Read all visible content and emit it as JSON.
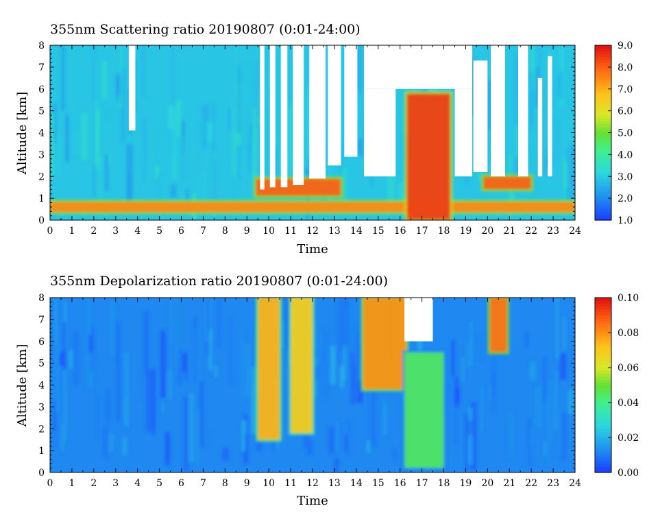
{
  "chart_data": [
    {
      "type": "heatmap",
      "title": "355nm Scattering ratio  20190807 (0:01-24:00)",
      "xlabel": "Time",
      "ylabel": "Altitude [km]",
      "xlim": [
        0,
        24
      ],
      "ylim": [
        0,
        8
      ],
      "x_ticks": [
        "0",
        "1",
        "2",
        "3",
        "4",
        "5",
        "6",
        "7",
        "8",
        "9",
        "10",
        "11",
        "12",
        "13",
        "14",
        "15",
        "16",
        "17",
        "18",
        "19",
        "20",
        "21",
        "22",
        "23",
        "24"
      ],
      "y_ticks": [
        "0",
        "1",
        "2",
        "3",
        "4",
        "5",
        "6",
        "7",
        "8"
      ],
      "colorbar": {
        "range": [
          1.0,
          9.0
        ],
        "ticks": [
          "1.0",
          "2.0",
          "3.0",
          "4.0",
          "5.0",
          "6.0",
          "7.0",
          "8.0",
          "9.0"
        ]
      },
      "background_level": 2.9,
      "gaps": [
        {
          "time": [
            3.6,
            3.9
          ],
          "altitude": [
            4.1,
            8.0
          ]
        },
        {
          "time": [
            9.6,
            9.8
          ],
          "altitude": [
            1.4,
            8.0
          ]
        },
        {
          "time": [
            10.05,
            10.3
          ],
          "altitude": [
            1.5,
            8.0
          ]
        },
        {
          "time": [
            10.55,
            10.85
          ],
          "altitude": [
            1.5,
            8.0
          ]
        },
        {
          "time": [
            11.1,
            11.6
          ],
          "altitude": [
            1.6,
            8.0
          ]
        },
        {
          "time": [
            11.85,
            12.6
          ],
          "altitude": [
            1.9,
            8.0
          ]
        },
        {
          "time": [
            12.7,
            13.3
          ],
          "altitude": [
            2.5,
            8.0
          ]
        },
        {
          "time": [
            13.45,
            14.05
          ],
          "altitude": [
            2.9,
            8.0
          ]
        },
        {
          "time": [
            14.35,
            19.3
          ],
          "altitude": [
            6.0,
            8.0
          ]
        },
        {
          "time": [
            14.35,
            15.8
          ],
          "altitude": [
            2.0,
            6.0
          ]
        },
        {
          "time": [
            18.5,
            19.3
          ],
          "altitude": [
            2.0,
            6.0
          ]
        },
        {
          "time": [
            19.35,
            20.0
          ],
          "altitude": [
            2.2,
            7.3
          ]
        },
        {
          "time": [
            20.15,
            20.8
          ],
          "altitude": [
            2.0,
            8.0
          ]
        },
        {
          "time": [
            21.4,
            21.85
          ],
          "altitude": [
            2.0,
            8.0
          ]
        },
        {
          "time": [
            22.3,
            22.5
          ],
          "altitude": [
            2.0,
            6.5
          ]
        },
        {
          "time": [
            22.75,
            22.95
          ],
          "altitude": [
            2.0,
            7.5
          ]
        }
      ],
      "features": [
        {
          "label": "boundary layer",
          "time": [
            0,
            24
          ],
          "altitude": [
            0.35,
            0.85
          ],
          "value": 7.5
        },
        {
          "label": "cloud 17h",
          "time": [
            16.3,
            18.3
          ],
          "altitude": [
            0.0,
            5.8
          ],
          "value": 8.5
        },
        {
          "label": "cloud 9-12h",
          "time": [
            9.4,
            13.3
          ],
          "altitude": [
            1.1,
            1.9
          ],
          "value": 8.0
        },
        {
          "label": "cloud 20h",
          "time": [
            19.8,
            22.0
          ],
          "altitude": [
            1.4,
            2.0
          ],
          "value": 8.0
        }
      ]
    },
    {
      "type": "heatmap",
      "title": "355nm Depolarization ratio  20190807 (0:01-24:00)",
      "xlabel": "Time",
      "ylabel": "Altitude [km]",
      "xlim": [
        0,
        24
      ],
      "ylim": [
        0,
        8
      ],
      "x_ticks": [
        "0",
        "1",
        "2",
        "3",
        "4",
        "5",
        "6",
        "7",
        "8",
        "9",
        "10",
        "11",
        "12",
        "13",
        "14",
        "15",
        "16",
        "17",
        "18",
        "19",
        "20",
        "21",
        "22",
        "23",
        "24"
      ],
      "y_ticks": [
        "0",
        "1",
        "2",
        "3",
        "4",
        "5",
        "6",
        "7",
        "8"
      ],
      "colorbar": {
        "range": [
          0.0,
          0.1
        ],
        "ticks": [
          "0.00",
          "0.02",
          "0.04",
          "0.06",
          "0.08",
          "0.10"
        ]
      },
      "background_level": 0.012,
      "gaps": [
        {
          "time": [
            16.2,
            17.5
          ],
          "altitude": [
            6.0,
            8.0
          ]
        }
      ],
      "features": [
        {
          "label": "depolarizing layer 10h",
          "time": [
            9.5,
            10.5
          ],
          "altitude": [
            1.5,
            8.0
          ],
          "value": 0.075
        },
        {
          "label": "depolarizing layer 11h",
          "time": [
            11.0,
            12.0
          ],
          "altitude": [
            1.8,
            8.0
          ],
          "value": 0.07
        },
        {
          "label": "depolarizing layer 15h",
          "time": [
            14.3,
            16.3
          ],
          "altitude": [
            3.8,
            8.0
          ],
          "value": 0.08
        },
        {
          "label": "dust 17h",
          "time": [
            16.2,
            18.0
          ],
          "altitude": [
            0.2,
            5.5
          ],
          "value": 0.045
        },
        {
          "label": "depolarizing layer 20h",
          "time": [
            20.1,
            20.9
          ],
          "altitude": [
            5.5,
            8.0
          ],
          "value": 0.085
        }
      ]
    }
  ]
}
